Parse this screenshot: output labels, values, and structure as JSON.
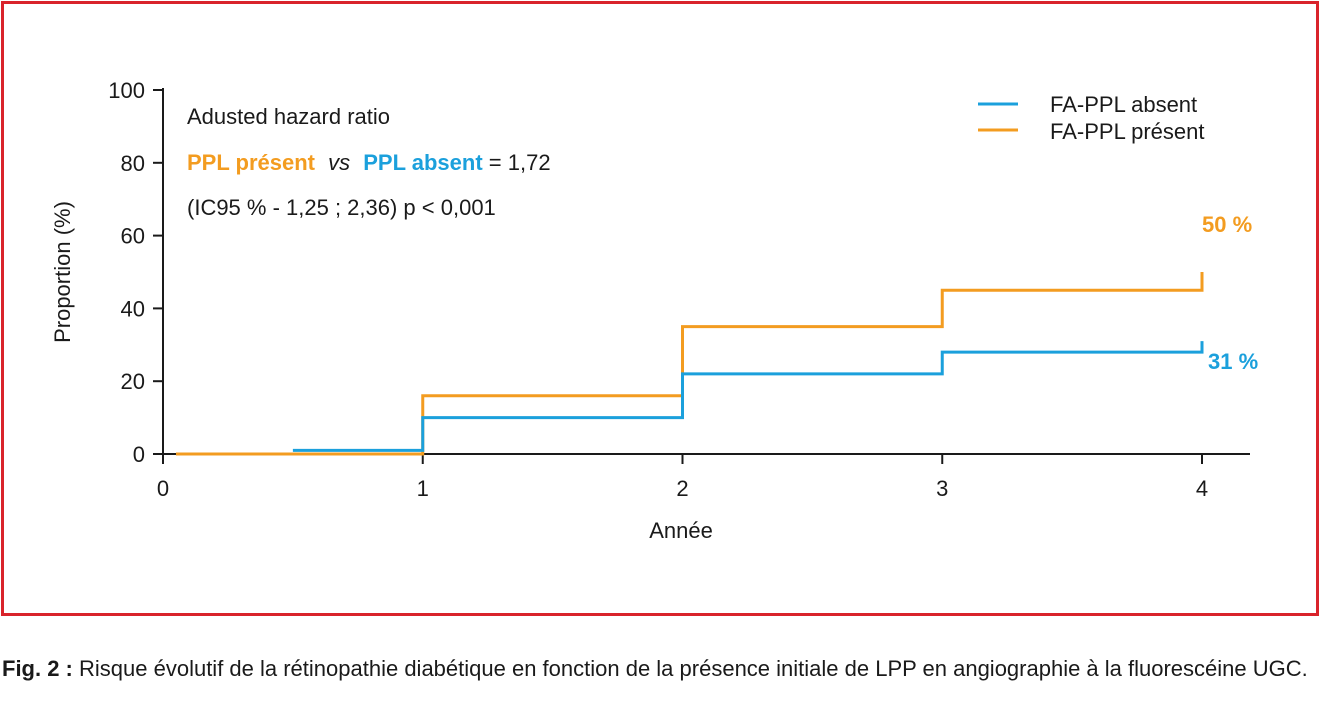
{
  "colors": {
    "frame": "#d9232b",
    "absent": "#1ba0dc",
    "present": "#f39c20",
    "text": "#1a1a1a"
  },
  "chart_data": {
    "type": "line",
    "step": true,
    "xlabel": "Année",
    "ylabel": "Proportion (%)",
    "xlim": [
      0,
      4.2
    ],
    "ylim": [
      0,
      100
    ],
    "xticks": [
      0,
      1,
      2,
      3,
      4
    ],
    "yticks": [
      0,
      20,
      40,
      60,
      80,
      100
    ],
    "grid": false,
    "legend_position": "top-right",
    "series": [
      {
        "name": "FA-PPL absent",
        "color": "#1ba0dc",
        "x": [
          0.5,
          1,
          2,
          3,
          4
        ],
        "y": [
          1,
          10,
          22,
          28,
          31
        ],
        "end_label": "31 %"
      },
      {
        "name": "FA-PPL présent",
        "color": "#f39c20",
        "x": [
          0.05,
          1,
          2,
          3,
          4
        ],
        "y": [
          0,
          16,
          35,
          45,
          50
        ],
        "end_label": "50 %"
      }
    ],
    "annotation": {
      "line1": "Adusted hazard ratio",
      "ppl_present": "PPL présent",
      "vs": "vs",
      "ppl_absent": "PPL absent",
      "equals": " = 1,72",
      "line3": "(IC95 % - 1,25 ; 2,36) p < 0,001"
    }
  },
  "caption": {
    "fig_label": "Fig. 2 :",
    "text": " Risque évolutif de la rétinopathie diabétique en fonction de la présence initiale de LPP en angiographie à la fluorescéine UGC."
  }
}
